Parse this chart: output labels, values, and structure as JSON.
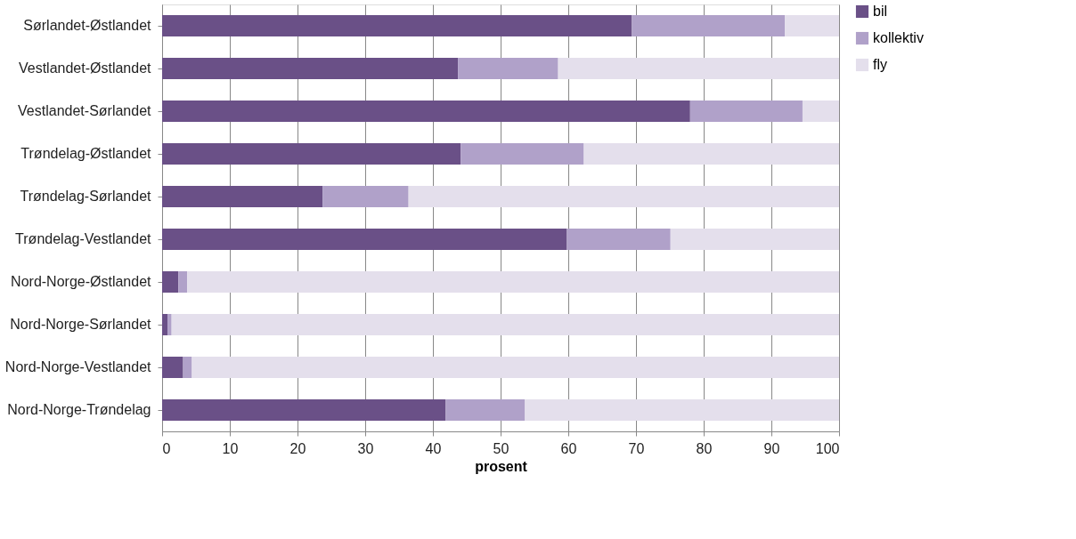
{
  "chart_data": {
    "type": "bar",
    "orientation": "horizontal",
    "stacked": true,
    "xlabel": "prosent",
    "categories": [
      "Sørlandet-Østlandet",
      "Vestlandet-Østlandet",
      "Vestlandet-Sørlandet",
      "Trøndelag-Østlandet",
      "Trøndelag-Sørlandet",
      "Trøndelag-Vestlandet",
      "Nord-Norge-Østlandet",
      "Nord-Norge-Sørlandet",
      "Nord-Norge-Vestlandet",
      "Nord-Norge-Trøndelag"
    ],
    "series": [
      {
        "name": "bil",
        "color": "#6a5087",
        "values": [
          69.4,
          43.7,
          78.0,
          44.1,
          23.7,
          59.8,
          2.4,
          0.8,
          3.1,
          41.9
        ]
      },
      {
        "name": "kollektiv",
        "color": "#b0a1c9",
        "values": [
          22.6,
          14.8,
          16.6,
          18.2,
          12.7,
          15.3,
          1.3,
          0.6,
          1.3,
          11.7
        ]
      },
      {
        "name": "fly",
        "color": "#e4dfec",
        "values": [
          8.0,
          41.5,
          5.4,
          37.7,
          63.6,
          24.9,
          96.3,
          98.6,
          95.6,
          46.4
        ]
      }
    ],
    "xlim": [
      0,
      100
    ],
    "xticks": [
      0,
      10,
      20,
      30,
      40,
      50,
      60,
      70,
      80,
      90,
      100
    ],
    "grid": "x",
    "legend": "right"
  }
}
